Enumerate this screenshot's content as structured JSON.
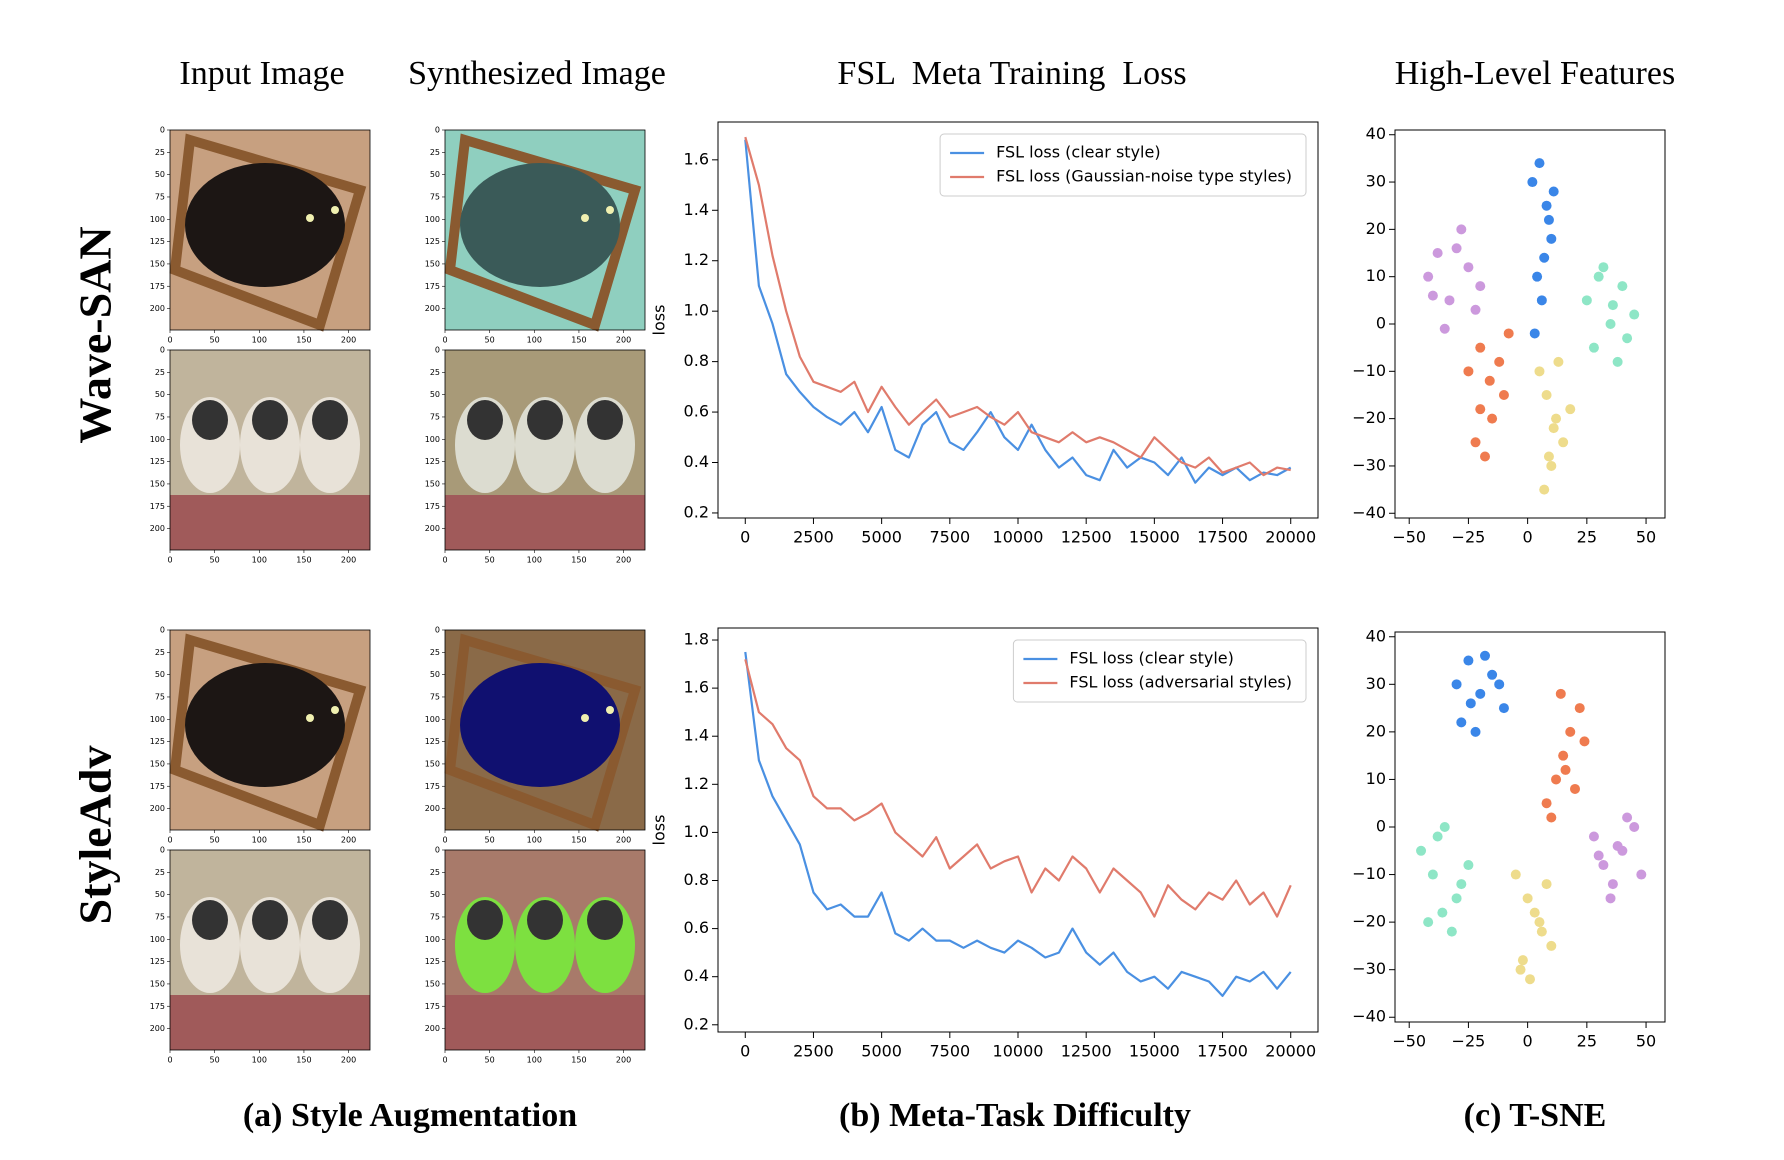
{
  "header": {
    "columns": [
      "Input Image",
      "Synthesized Image",
      "FSL  Meta Training  Loss",
      "High-Level Features"
    ]
  },
  "rows": [
    {
      "label": "Wave-SAN"
    },
    {
      "label": "StyleAdv"
    }
  ],
  "captions": [
    "(a) Style Augmentation",
    "(b) Meta-Task Difficulty",
    "(c) T-SNE"
  ],
  "image_axes": {
    "xlim": [
      0,
      224
    ],
    "ylim": [
      0,
      224
    ],
    "xticks": [
      0,
      50,
      100,
      150,
      200
    ],
    "yticks": [
      0,
      25,
      50,
      75,
      100,
      125,
      150,
      175,
      200
    ]
  },
  "chart_data": [
    {
      "type": "line",
      "ylabel": "loss",
      "legend": "upper right",
      "x": [
        0,
        500,
        1000,
        1500,
        2000,
        2500,
        3000,
        3500,
        4000,
        4500,
        5000,
        5500,
        6000,
        6500,
        7000,
        7500,
        8000,
        8500,
        9000,
        9500,
        10000,
        10500,
        11000,
        11500,
        12000,
        12500,
        13000,
        13500,
        14000,
        14500,
        15000,
        15500,
        16000,
        16500,
        17000,
        17500,
        18000,
        18500,
        19000,
        19500,
        20000
      ],
      "xlim": [
        -1000,
        21000
      ],
      "xticks": [
        0,
        2500,
        5000,
        7500,
        10000,
        12500,
        15000,
        17500,
        20000
      ],
      "ylim": [
        0.18,
        1.75
      ],
      "yticks": [
        0.2,
        0.4,
        0.6,
        0.8,
        {
          "value": 1,
          "label": "1.0"
        },
        1.2,
        1.4,
        1.6
      ],
      "series": [
        {
          "name": "FSL loss (clear style)",
          "color": "#4a90e2",
          "values": [
            1.68,
            1.1,
            0.95,
            0.75,
            0.68,
            0.62,
            0.58,
            0.55,
            0.6,
            0.52,
            0.62,
            0.45,
            0.42,
            0.55,
            0.6,
            0.48,
            0.45,
            0.52,
            0.6,
            0.5,
            0.45,
            0.55,
            0.45,
            0.38,
            0.42,
            0.35,
            0.33,
            0.45,
            0.38,
            0.42,
            0.4,
            0.35,
            0.42,
            0.32,
            0.38,
            0.35,
            0.38,
            0.33,
            0.36,
            0.35,
            0.38
          ]
        },
        {
          "name": "FSL loss (Gaussian-noise type styles)",
          "color": "#e07b6c",
          "values": [
            1.69,
            1.5,
            1.22,
            1.0,
            0.82,
            0.72,
            0.7,
            0.68,
            0.72,
            0.6,
            0.7,
            0.62,
            0.55,
            0.6,
            0.65,
            0.58,
            0.6,
            0.62,
            0.58,
            0.55,
            0.6,
            0.52,
            0.5,
            0.48,
            0.52,
            0.48,
            0.5,
            0.48,
            0.45,
            0.42,
            0.5,
            0.45,
            0.4,
            0.38,
            0.42,
            0.36,
            0.38,
            0.4,
            0.35,
            0.38,
            0.37
          ]
        }
      ]
    },
    {
      "type": "scatter",
      "xlim": [
        -56,
        58
      ],
      "xticks": [
        {
          "value": -50,
          "label": "−50"
        },
        {
          "value": -25,
          "label": "−25"
        },
        0,
        25,
        50
      ],
      "ylim": [
        -41,
        41
      ],
      "yticks": [
        {
          "value": -40,
          "label": "−40"
        },
        {
          "value": -30,
          "label": "−30"
        },
        {
          "value": -20,
          "label": "−20"
        },
        {
          "value": -10,
          "label": "−10"
        },
        0,
        10,
        20,
        30,
        40
      ],
      "series": [
        {
          "color": "#3a86e8",
          "x": [
            2,
            5,
            8,
            10,
            4,
            6,
            9,
            3,
            7,
            11
          ],
          "y": [
            30,
            34,
            25,
            18,
            10,
            5,
            22,
            -2,
            14,
            28
          ]
        },
        {
          "color": "#cc99dd",
          "x": [
            -42,
            -38,
            -33,
            -28,
            -25,
            -20,
            -35,
            -30,
            -22,
            -40
          ],
          "y": [
            10,
            15,
            5,
            20,
            12,
            8,
            -1,
            16,
            3,
            6
          ]
        },
        {
          "color": "#8ee6c6",
          "x": [
            25,
            30,
            35,
            40,
            45,
            28,
            38,
            32,
            42,
            36
          ],
          "y": [
            5,
            10,
            0,
            8,
            2,
            -5,
            -8,
            12,
            -3,
            4
          ]
        },
        {
          "color": "#ef7b4f",
          "x": [
            -25,
            -20,
            -15,
            -10,
            -22,
            -18,
            -12,
            -8,
            -20,
            -16
          ],
          "y": [
            -10,
            -5,
            -20,
            -15,
            -25,
            -28,
            -8,
            -2,
            -18,
            -12
          ]
        },
        {
          "color": "#eedc8c",
          "x": [
            5,
            8,
            12,
            15,
            10,
            7,
            18,
            13,
            9,
            11
          ],
          "y": [
            -10,
            -15,
            -20,
            -25,
            -30,
            -35,
            -18,
            -8,
            -28,
            -22
          ]
        }
      ]
    },
    {
      "type": "line",
      "ylabel": "loss",
      "legend": "upper right",
      "x": [
        0,
        500,
        1000,
        1500,
        2000,
        2500,
        3000,
        3500,
        4000,
        4500,
        5000,
        5500,
        6000,
        6500,
        7000,
        7500,
        8000,
        8500,
        9000,
        9500,
        10000,
        10500,
        11000,
        11500,
        12000,
        12500,
        13000,
        13500,
        14000,
        14500,
        15000,
        15500,
        16000,
        16500,
        17000,
        17500,
        18000,
        18500,
        19000,
        19500,
        20000
      ],
      "xlim": [
        -1000,
        21000
      ],
      "xticks": [
        0,
        2500,
        5000,
        7500,
        10000,
        12500,
        15000,
        17500,
        20000
      ],
      "ylim": [
        0.17,
        1.85
      ],
      "yticks": [
        0.2,
        0.4,
        0.6,
        0.8,
        {
          "value": 1,
          "label": "1.0"
        },
        1.2,
        1.4,
        1.6,
        1.8
      ],
      "series": [
        {
          "name": "FSL loss (clear style)",
          "color": "#4a90e2",
          "values": [
            1.75,
            1.3,
            1.15,
            1.05,
            0.95,
            0.75,
            0.68,
            0.7,
            0.65,
            0.65,
            0.75,
            0.58,
            0.55,
            0.6,
            0.55,
            0.55,
            0.52,
            0.55,
            0.52,
            0.5,
            0.55,
            0.52,
            0.48,
            0.5,
            0.6,
            0.5,
            0.45,
            0.5,
            0.42,
            0.38,
            0.4,
            0.35,
            0.42,
            0.4,
            0.38,
            0.32,
            0.4,
            0.38,
            0.42,
            0.35,
            0.42
          ]
        },
        {
          "name": "FSL loss (adversarial styles)",
          "color": "#e07b6c",
          "values": [
            1.72,
            1.5,
            1.45,
            1.35,
            1.3,
            1.15,
            1.1,
            1.1,
            1.05,
            1.08,
            1.12,
            1.0,
            0.95,
            0.9,
            0.98,
            0.85,
            0.9,
            0.95,
            0.85,
            0.88,
            0.9,
            0.75,
            0.85,
            0.8,
            0.9,
            0.85,
            0.75,
            0.85,
            0.8,
            0.75,
            0.65,
            0.78,
            0.72,
            0.68,
            0.75,
            0.72,
            0.8,
            0.7,
            0.75,
            0.65,
            0.78
          ]
        }
      ]
    },
    {
      "type": "scatter",
      "xlim": [
        -56,
        58
      ],
      "xticks": [
        {
          "value": -50,
          "label": "−50"
        },
        {
          "value": -25,
          "label": "−25"
        },
        0,
        25,
        50
      ],
      "ylim": [
        -41,
        41
      ],
      "yticks": [
        {
          "value": -40,
          "label": "−40"
        },
        {
          "value": -30,
          "label": "−30"
        },
        {
          "value": -20,
          "label": "−20"
        },
        {
          "value": -10,
          "label": "−10"
        },
        0,
        10,
        20,
        30,
        40
      ],
      "series": [
        {
          "color": "#3a86e8",
          "x": [
            -30,
            -25,
            -20,
            -15,
            -10,
            -28,
            -22,
            -18,
            -12,
            -24
          ],
          "y": [
            30,
            35,
            28,
            32,
            25,
            22,
            20,
            36,
            30,
            26
          ]
        },
        {
          "color": "#ef7b4f",
          "x": [
            8,
            12,
            15,
            18,
            22,
            10,
            20,
            14,
            16,
            24
          ],
          "y": [
            5,
            10,
            15,
            20,
            25,
            2,
            8,
            28,
            12,
            18
          ]
        },
        {
          "color": "#cc99dd",
          "x": [
            28,
            32,
            36,
            40,
            45,
            48,
            35,
            42,
            30,
            38
          ],
          "y": [
            -2,
            -8,
            -12,
            -5,
            0,
            -10,
            -15,
            2,
            -6,
            -4
          ]
        },
        {
          "color": "#8ee6c6",
          "x": [
            -45,
            -40,
            -35,
            -30,
            -25,
            -42,
            -38,
            -32,
            -28,
            -36
          ],
          "y": [
            -5,
            -10,
            0,
            -15,
            -8,
            -20,
            -2,
            -22,
            -12,
            -18
          ]
        },
        {
          "color": "#eedc8c",
          "x": [
            -5,
            0,
            5,
            10,
            -3,
            3,
            8,
            -2,
            6,
            1
          ],
          "y": [
            -10,
            -15,
            -20,
            -25,
            -30,
            -18,
            -12,
            -28,
            -22,
            -32
          ]
        }
      ]
    }
  ]
}
